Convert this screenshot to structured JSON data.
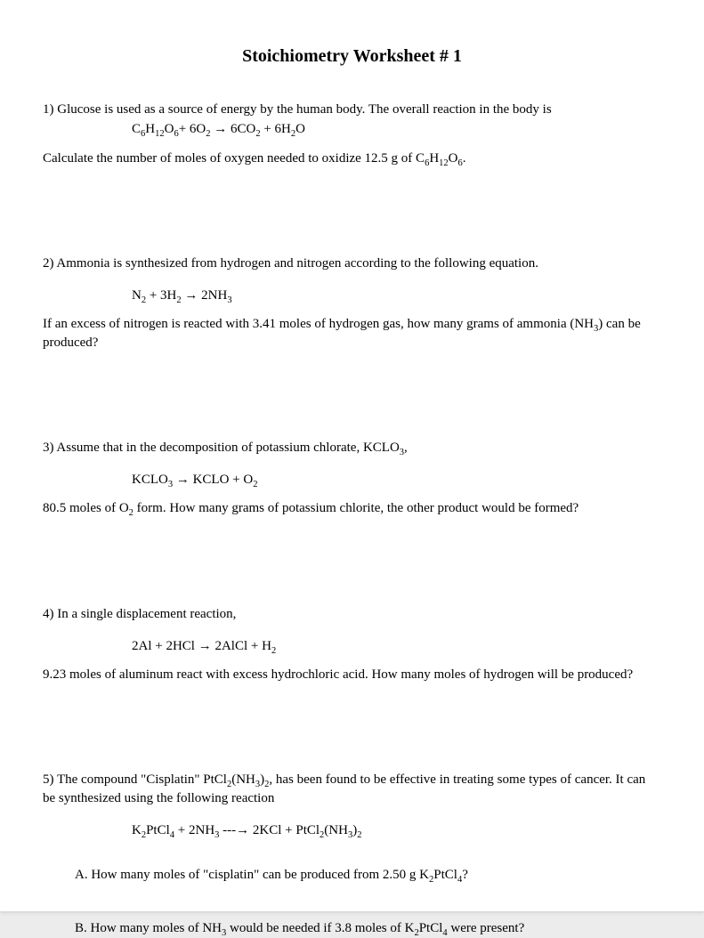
{
  "title": "Stoichiometry Worksheet # 1",
  "q1": {
    "text_a": "1) Glucose is used as a source of energy by the human body.  The overall reaction in the body is",
    "equation": "C₆H₁₂O₆+ 6O₂ → 6CO₂ + 6H₂O",
    "text_b": "Calculate the number of moles of oxygen needed to oxidize 12.5 g of C₆H₁₂O₆."
  },
  "q2": {
    "text_a": "2)   Ammonia is synthesized from hydrogen and nitrogen according to the following equation.",
    "equation": "N₂ + 3H₂ → 2NH₃",
    "text_b": " If an excess of nitrogen is reacted with 3.41 moles of hydrogen gas, how many grams of ammonia (NH₃) can be produced?"
  },
  "q3": {
    "text_a": "3)   Assume that in the decomposition of potassium chlorate, KCLO₃,",
    "equation": "KCLO₃ → KCLO + O₂",
    "text_b": "80.5 moles of O₂ form.  How many grams of potassium chlorite, the other product would be formed?"
  },
  "q4": {
    "text_a": "4)  In a single displacement reaction,",
    "equation": "2Al + 2HCl → 2AlCl + H₂",
    "text_b": "9.23 moles of aluminum react with excess hydrochloric acid.  How many moles of hydrogen will be produced?"
  },
  "q5": {
    "text_a": "5) The compound \"Cisplatin\" PtCl₂(NH₃)₂, has been found to be effective in treating some types of cancer.  It can be synthesized using the following reaction",
    "equation": "K₂PtCl₄ + 2NH₃ ---→ 2KCl + PtCl₂(NH₃)₂",
    "sub_a": "A.   How many moles of \"cisplatin\" can be produced from 2.50 g K₂PtCl₄?",
    "sub_b": "B.   How many moles of NH₃ would be needed if 3.8 moles of K₂PtCl₄ were present?"
  }
}
